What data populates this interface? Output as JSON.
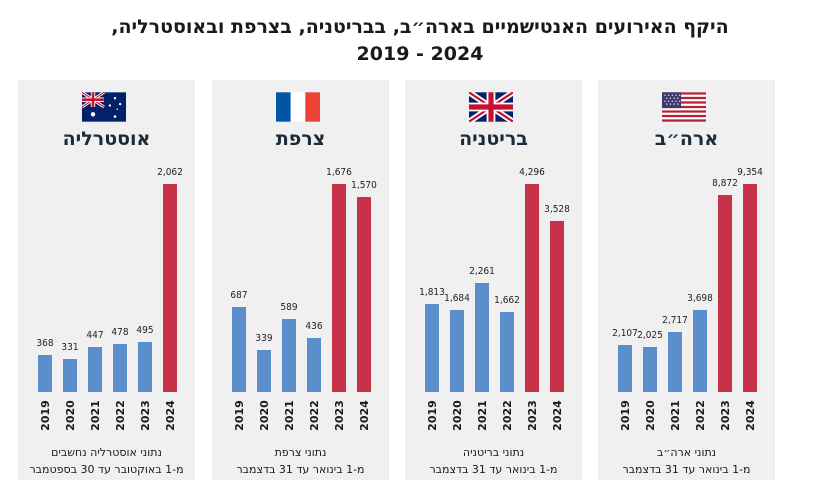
{
  "title": {
    "line1": "היקף האירועים האנטישמיים בארה״ב, בבריטניה, בצרפת ובאוסטרליה,",
    "line2": "2024 - 2019"
  },
  "colors": {
    "bar_blue": "#5b8fcb",
    "bar_red": "#c63049",
    "panel_bg": "#f0f0f0"
  },
  "chart_data": [
    {
      "type": "bar",
      "title": "ארה״ב",
      "flag_icon": "us-flag-icon",
      "categories": [
        "2019",
        "2020",
        "2021",
        "2022",
        "2023",
        "2024"
      ],
      "values": [
        2107,
        2025,
        2717,
        3698,
        8872,
        9354
      ],
      "value_labels": [
        "2,107",
        "2,025",
        "2,717",
        "3,698",
        "8,872",
        "9,354"
      ],
      "colors": [
        "#5b8fcb",
        "#5b8fcb",
        "#5b8fcb",
        "#5b8fcb",
        "#c63049",
        "#c63049"
      ],
      "note": [
        "נתוני ארה״ב",
        "מ-1 בינואר עד 31 בדצמבר"
      ],
      "ylim": [
        0,
        9354
      ]
    },
    {
      "type": "bar",
      "title": "בריטניה",
      "flag_icon": "uk-flag-icon",
      "categories": [
        "2019",
        "2020",
        "2021",
        "2022",
        "2023",
        "2024"
      ],
      "values": [
        1813,
        1684,
        2261,
        1662,
        4296,
        3528
      ],
      "value_labels": [
        "1,813",
        "1,684",
        "2,261",
        "1,662",
        "4,296",
        "3,528"
      ],
      "colors": [
        "#5b8fcb",
        "#5b8fcb",
        "#5b8fcb",
        "#5b8fcb",
        "#c63049",
        "#c63049"
      ],
      "note": [
        "נתוני בריטניה",
        "מ-1 בינואר עד 31 בדצמבר"
      ],
      "ylim": [
        0,
        4296
      ]
    },
    {
      "type": "bar",
      "title": "צרפת",
      "flag_icon": "france-flag-icon",
      "categories": [
        "2019",
        "2020",
        "2021",
        "2022",
        "2023",
        "2024"
      ],
      "values": [
        687,
        339,
        589,
        436,
        1676,
        1570
      ],
      "value_labels": [
        "687",
        "339",
        "589",
        "436",
        "1,676",
        "1,570"
      ],
      "colors": [
        "#5b8fcb",
        "#5b8fcb",
        "#5b8fcb",
        "#5b8fcb",
        "#c63049",
        "#c63049"
      ],
      "note": [
        "נתוני צרפת",
        "מ-1 בינואר עד 31 בדצמבר"
      ],
      "ylim": [
        0,
        1676
      ]
    },
    {
      "type": "bar",
      "title": "אוסטרליה",
      "flag_icon": "australia-flag-icon",
      "categories": [
        "2019",
        "2020",
        "2021",
        "2022",
        "2023",
        "2024"
      ],
      "values": [
        368,
        331,
        447,
        478,
        495,
        2062
      ],
      "value_labels": [
        "368",
        "331",
        "447",
        "478",
        "495",
        "2,062"
      ],
      "colors": [
        "#5b8fcb",
        "#5b8fcb",
        "#5b8fcb",
        "#5b8fcb",
        "#5b8fcb",
        "#c63049"
      ],
      "note": [
        "נתוני אוסטרליה נחשבים",
        "מ-1 באוקטובר עד 30 בספטמבר"
      ],
      "ylim": [
        0,
        2062
      ]
    }
  ]
}
